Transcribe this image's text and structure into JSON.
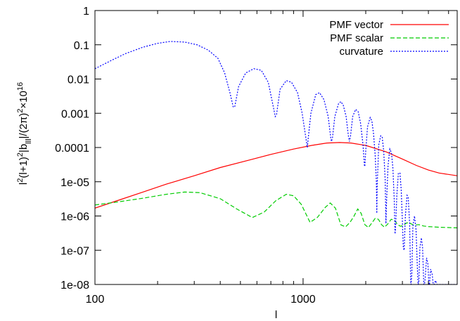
{
  "chart_data": {
    "type": "line",
    "xlabel": "l",
    "ylabel_parts": {
      "a": "l",
      "a_sup": "2",
      "b": "(l+1)",
      "b_sup": "2",
      "c": "|b",
      "c_sub": "lll",
      "d": "|/(2π)",
      "d_sup": "2",
      "e": "×10",
      "e_sup": "16"
    },
    "x_scale": "log",
    "y_scale": "log",
    "xlim": [
      100,
      5500
    ],
    "ylim": [
      1e-08,
      1
    ],
    "x_ticks": [
      {
        "value": 100,
        "label": "100"
      },
      {
        "value": 1000,
        "label": "1000"
      }
    ],
    "y_ticks": [
      {
        "value": 1,
        "label": "1"
      },
      {
        "value": 0.1,
        "label": "0.1"
      },
      {
        "value": 0.01,
        "label": "0.01"
      },
      {
        "value": 0.001,
        "label": "0.001"
      },
      {
        "value": 0.0001,
        "label": "0.0001"
      },
      {
        "value": 1e-05,
        "label": "1e-05"
      },
      {
        "value": 1e-06,
        "label": "1e-06"
      },
      {
        "value": 1e-07,
        "label": "1e-07"
      },
      {
        "value": 1e-08,
        "label": "1e-08"
      }
    ],
    "grid": false,
    "legend_position": "top-right",
    "series": [
      {
        "name": "PMF vector",
        "color": "#ff0000",
        "dash": "solid",
        "points": [
          [
            100,
            1.7e-06
          ],
          [
            130,
            2.9e-06
          ],
          [
            170,
            5e-06
          ],
          [
            220,
            8.5e-06
          ],
          [
            300,
            1.5e-05
          ],
          [
            400,
            2.6e-05
          ],
          [
            550,
            4.3e-05
          ],
          [
            700,
            6.3e-05
          ],
          [
            900,
            9e-05
          ],
          [
            1100,
            0.000115
          ],
          [
            1300,
            0.000135
          ],
          [
            1500,
            0.00014
          ],
          [
            1700,
            0.000135
          ],
          [
            2000,
            0.000115
          ],
          [
            2500,
            7.5e-05
          ],
          [
            3000,
            4.6e-05
          ],
          [
            3500,
            3e-05
          ],
          [
            4000,
            2.2e-05
          ],
          [
            4500,
            1.8e-05
          ],
          [
            5500,
            1.5e-05
          ]
        ]
      },
      {
        "name": "PMF scalar",
        "color": "#00cc00",
        "dash": "dashed",
        "points": [
          [
            100,
            2.1e-06
          ],
          [
            130,
            2.6e-06
          ],
          [
            170,
            3.3e-06
          ],
          [
            220,
            4.3e-06
          ],
          [
            270,
            5e-06
          ],
          [
            320,
            4.8e-06
          ],
          [
            400,
            3.2e-06
          ],
          [
            480,
            1.6e-06
          ],
          [
            570,
            9e-07
          ],
          [
            650,
            1.3e-06
          ],
          [
            740,
            2.8e-06
          ],
          [
            830,
            4.3e-06
          ],
          [
            900,
            3.9e-06
          ],
          [
            980,
            2.2e-06
          ],
          [
            1080,
            6.5e-07
          ],
          [
            1170,
            9e-07
          ],
          [
            1280,
            1.8e-06
          ],
          [
            1350,
            2.4e-06
          ],
          [
            1430,
            1.7e-06
          ],
          [
            1520,
            5.5e-07
          ],
          [
            1600,
            4.8e-07
          ],
          [
            1680,
            6.5e-07
          ],
          [
            1750,
            9.5e-07
          ],
          [
            1830,
            1.6e-06
          ],
          [
            1900,
            1.2e-06
          ],
          [
            1980,
            5.6e-07
          ],
          [
            2060,
            4.6e-07
          ],
          [
            2150,
            6.5e-07
          ],
          [
            2220,
            8.5e-07
          ],
          [
            2300,
            8e-07
          ],
          [
            2380,
            5.6e-07
          ],
          [
            2460,
            4.7e-07
          ],
          [
            2550,
            5.8e-07
          ],
          [
            2650,
            8e-07
          ],
          [
            2750,
            7.5e-07
          ],
          [
            2850,
            5.5e-07
          ],
          [
            2950,
            5e-07
          ],
          [
            3050,
            5.5e-07
          ],
          [
            3150,
            6.3e-07
          ],
          [
            3250,
            6.2e-07
          ],
          [
            3400,
            5.4e-07
          ],
          [
            3600,
            5.6e-07
          ],
          [
            3800,
            5.1e-07
          ],
          [
            4000,
            4.9e-07
          ],
          [
            4500,
            4.7e-07
          ],
          [
            5500,
            4.5e-07
          ]
        ]
      },
      {
        "name": "curvature",
        "color": "#0000ff",
        "dash": "dotted",
        "points": [
          [
            100,
            0.02
          ],
          [
            120,
            0.035
          ],
          [
            140,
            0.055
          ],
          [
            170,
            0.085
          ],
          [
            200,
            0.11
          ],
          [
            230,
            0.125
          ],
          [
            270,
            0.12
          ],
          [
            310,
            0.1
          ],
          [
            350,
            0.07
          ],
          [
            390,
            0.04
          ],
          [
            420,
            0.015
          ],
          [
            445,
            0.004
          ],
          [
            462,
            0.0015
          ],
          [
            470,
            0.0016
          ],
          [
            490,
            0.006
          ],
          [
            530,
            0.015
          ],
          [
            580,
            0.02
          ],
          [
            630,
            0.018
          ],
          [
            680,
            0.008
          ],
          [
            720,
            0.0015
          ],
          [
            735,
            0.0008
          ],
          [
            745,
            0.0009
          ],
          [
            775,
            0.005
          ],
          [
            830,
            0.009
          ],
          [
            880,
            0.008
          ],
          [
            940,
            0.004
          ],
          [
            990,
            0.001
          ],
          [
            1030,
            0.0002
          ],
          [
            1048,
            0.0001
          ],
          [
            1060,
            0.0002
          ],
          [
            1090,
            0.001
          ],
          [
            1150,
            0.0035
          ],
          [
            1200,
            0.004
          ],
          [
            1260,
            0.0025
          ],
          [
            1320,
            0.0008
          ],
          [
            1360,
            0.00018
          ],
          [
            1370,
            0.00015
          ],
          [
            1385,
            0.0002
          ],
          [
            1420,
            0.0008
          ],
          [
            1480,
            0.0019
          ],
          [
            1520,
            0.0022
          ],
          [
            1560,
            0.0017
          ],
          [
            1610,
            0.0008
          ],
          [
            1650,
            0.00022
          ],
          [
            1670,
            0.00015
          ],
          [
            1690,
            0.00022
          ],
          [
            1730,
            0.0008
          ],
          [
            1790,
            0.0013
          ],
          [
            1840,
            0.0011
          ],
          [
            1890,
            0.0005
          ],
          [
            1940,
            0.00012
          ],
          [
            1970,
            3e-05
          ],
          [
            1980,
            2.8e-05
          ],
          [
            2000,
            8e-05
          ],
          [
            2040,
            0.0004
          ],
          [
            2100,
            0.00075
          ],
          [
            2140,
            0.0006
          ],
          [
            2180,
            0.00025
          ],
          [
            2220,
            6e-05
          ],
          [
            2250,
            1e-05
          ],
          [
            2260,
            1.2e-06
          ],
          [
            2270,
            8e-06
          ],
          [
            2310,
            0.00012
          ],
          [
            2360,
            0.00022
          ],
          [
            2400,
            0.0002
          ],
          [
            2440,
            8e-05
          ],
          [
            2480,
            1.2e-05
          ],
          [
            2500,
            6e-07
          ],
          [
            2520,
            3e-06
          ],
          [
            2560,
            3e-05
          ],
          [
            2610,
            9e-05
          ],
          [
            2660,
            7e-05
          ],
          [
            2700,
            2.5e-05
          ],
          [
            2740,
            3e-06
          ],
          [
            2765,
            3e-07
          ],
          [
            2780,
            4e-07
          ],
          [
            2820,
            4e-06
          ],
          [
            2870,
            1.8e-05
          ],
          [
            2920,
            1.8e-05
          ],
          [
            2960,
            6e-06
          ],
          [
            3000,
            7e-07
          ],
          [
            3030,
            1.2e-07
          ],
          [
            3060,
            1e-07
          ],
          [
            3100,
            1e-06
          ],
          [
            3160,
            4e-06
          ],
          [
            3200,
            3.5e-06
          ],
          [
            3250,
            6e-07
          ],
          [
            3290,
            1e-08
          ],
          [
            3300,
            1e-08
          ],
          [
            3330,
            2e-08
          ],
          [
            3370,
            5e-07
          ],
          [
            3430,
            1e-06
          ],
          [
            3490,
            4e-07
          ],
          [
            3540,
            3e-08
          ],
          [
            3570,
            1e-08
          ],
          [
            3600,
            1.2e-08
          ],
          [
            3640,
            1.2e-07
          ],
          [
            3700,
            2.3e-07
          ],
          [
            3750,
            1.2e-07
          ],
          [
            3800,
            1e-08
          ],
          [
            3830,
            1e-08
          ],
          [
            3860,
            1.5e-08
          ],
          [
            3920,
            6e-08
          ],
          [
            3980,
            4e-08
          ],
          [
            4020,
            1e-08
          ],
          [
            4050,
            1e-08
          ],
          [
            4100,
            2.8e-08
          ],
          [
            4170,
            2e-08
          ],
          [
            4220,
            1e-08
          ],
          [
            4260,
            1e-08
          ],
          [
            4330,
            1.3e-08
          ],
          [
            4400,
            1e-08
          ],
          [
            5500,
            1e-08
          ]
        ]
      }
    ]
  }
}
